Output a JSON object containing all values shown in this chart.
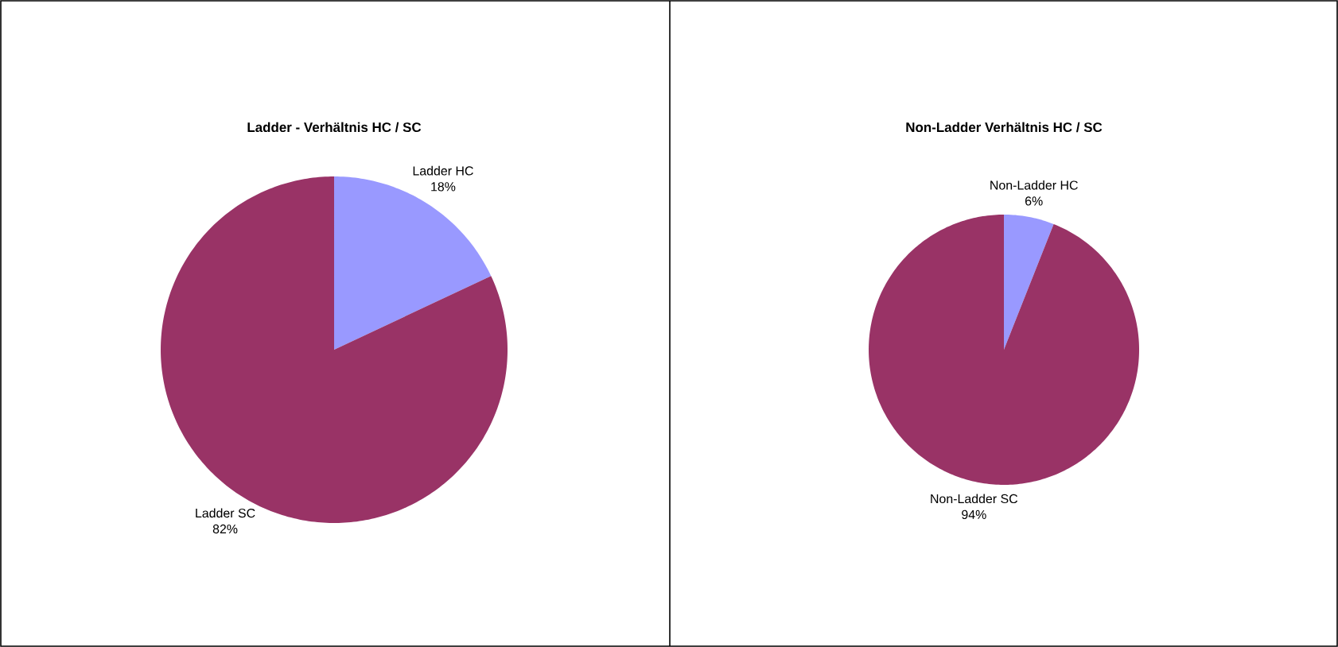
{
  "chart_data": [
    {
      "type": "pie",
      "title": "Ladder - Verhältnis HC / SC",
      "categories": [
        "Ladder HC",
        "Ladder SC"
      ],
      "values": [
        18,
        82
      ],
      "colors": [
        "#9999ff",
        "#993366"
      ],
      "value_labels": [
        "18%",
        "82%"
      ]
    },
    {
      "type": "pie",
      "title": "Non-Ladder Verhältnis HC / SC",
      "categories": [
        "Non-Ladder HC",
        "Non-Ladder SC"
      ],
      "values": [
        6,
        94
      ],
      "colors": [
        "#9999ff",
        "#993366"
      ],
      "value_labels": [
        "6%",
        "94%"
      ]
    }
  ]
}
